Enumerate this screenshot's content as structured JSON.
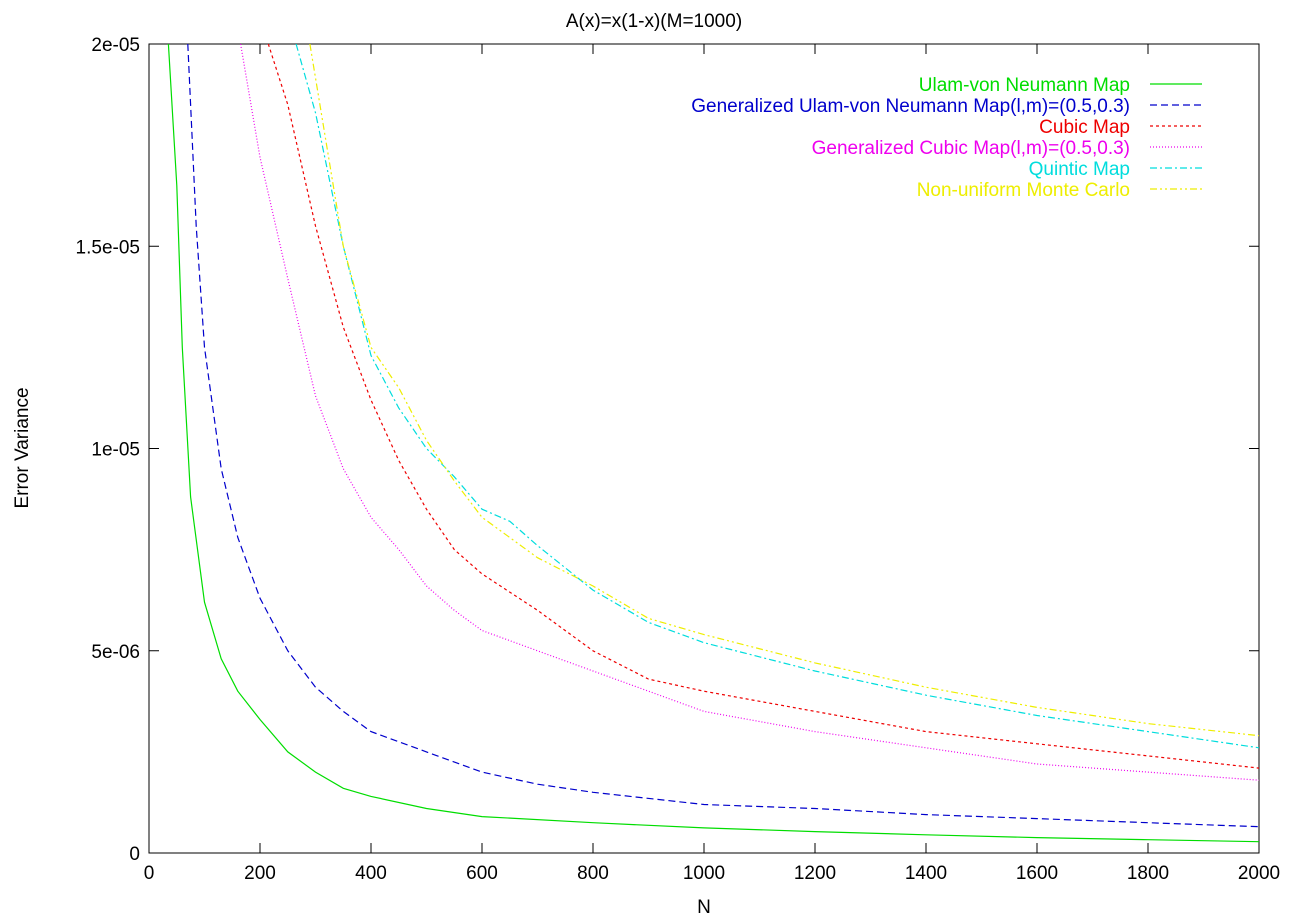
{
  "chart_data": {
    "type": "line",
    "title": "A(x)=x(1-x)(M=1000)",
    "xlabel": "N",
    "ylabel": "Error Variance",
    "xlim": [
      0,
      2000
    ],
    "ylim": [
      0,
      2e-05
    ],
    "x_ticks": [
      0,
      200,
      400,
      600,
      800,
      1000,
      1200,
      1400,
      1600,
      1800,
      2000
    ],
    "x_tick_labels": [
      "0",
      "200",
      "400",
      "600",
      "800",
      "1000",
      "1200",
      "1400",
      "1600",
      "1800",
      "2000"
    ],
    "y_ticks": [
      0,
      5e-06,
      1e-05,
      1.5e-05,
      2e-05
    ],
    "y_tick_labels": [
      "0",
      "5e-06",
      "1e-05",
      "1.5e-05",
      "2e-05"
    ],
    "grid": false,
    "legend_position": "top-right",
    "series": [
      {
        "name": "Ulam-von Neumann Map",
        "color": "#00dd00",
        "dash": "solid",
        "points": [
          [
            35,
            2e-05
          ],
          [
            50,
            1.65e-05
          ],
          [
            60,
            1.25e-05
          ],
          [
            75,
            8.8e-06
          ],
          [
            100,
            6.2e-06
          ],
          [
            130,
            4.8e-06
          ],
          [
            160,
            4e-06
          ],
          [
            200,
            3.3e-06
          ],
          [
            250,
            2.5e-06
          ],
          [
            300,
            2e-06
          ],
          [
            350,
            1.6e-06
          ],
          [
            400,
            1.4e-06
          ],
          [
            500,
            1.1e-06
          ],
          [
            600,
            9e-07
          ],
          [
            800,
            7.5e-07
          ],
          [
            1000,
            6.2e-07
          ],
          [
            1200,
            5.3e-07
          ],
          [
            1400,
            4.5e-07
          ],
          [
            1600,
            3.8e-07
          ],
          [
            1800,
            3.3e-07
          ],
          [
            2000,
            2.8e-07
          ]
        ]
      },
      {
        "name": "Generalized Ulam-von Neumann Map(l,m)=(0.5,0.3)",
        "color": "#0000cc",
        "dash": "long-dash",
        "points": [
          [
            70,
            2e-05
          ],
          [
            85,
            1.55e-05
          ],
          [
            100,
            1.25e-05
          ],
          [
            130,
            9.5e-06
          ],
          [
            160,
            7.8e-06
          ],
          [
            200,
            6.3e-06
          ],
          [
            250,
            5e-06
          ],
          [
            300,
            4.1e-06
          ],
          [
            350,
            3.5e-06
          ],
          [
            400,
            3e-06
          ],
          [
            500,
            2.5e-06
          ],
          [
            600,
            2e-06
          ],
          [
            700,
            1.7e-06
          ],
          [
            800,
            1.5e-06
          ],
          [
            1000,
            1.2e-06
          ],
          [
            1200,
            1.1e-06
          ],
          [
            1400,
            9.5e-07
          ],
          [
            1600,
            8.5e-07
          ],
          [
            1800,
            7.5e-07
          ],
          [
            2000,
            6.5e-07
          ]
        ]
      },
      {
        "name": "Cubic Map",
        "color": "#ee0000",
        "dash": "short-dash",
        "points": [
          [
            215,
            2e-05
          ],
          [
            250,
            1.85e-05
          ],
          [
            300,
            1.55e-05
          ],
          [
            350,
            1.3e-05
          ],
          [
            400,
            1.12e-05
          ],
          [
            450,
            9.7e-06
          ],
          [
            500,
            8.5e-06
          ],
          [
            550,
            7.5e-06
          ],
          [
            600,
            6.9e-06
          ],
          [
            700,
            6e-06
          ],
          [
            800,
            5e-06
          ],
          [
            900,
            4.3e-06
          ],
          [
            1000,
            4e-06
          ],
          [
            1200,
            3.5e-06
          ],
          [
            1400,
            3e-06
          ],
          [
            1600,
            2.7e-06
          ],
          [
            1800,
            2.4e-06
          ],
          [
            2000,
            2.1e-06
          ]
        ]
      },
      {
        "name": "Generalized Cubic Map(l,m)=(0.5,0.3)",
        "color": "#ee00ee",
        "dash": "dotted",
        "points": [
          [
            165,
            2e-05
          ],
          [
            200,
            1.72e-05
          ],
          [
            250,
            1.42e-05
          ],
          [
            300,
            1.13e-05
          ],
          [
            350,
            9.5e-06
          ],
          [
            400,
            8.3e-06
          ],
          [
            450,
            7.5e-06
          ],
          [
            500,
            6.6e-06
          ],
          [
            550,
            6e-06
          ],
          [
            600,
            5.5e-06
          ],
          [
            700,
            5e-06
          ],
          [
            800,
            4.5e-06
          ],
          [
            900,
            4e-06
          ],
          [
            1000,
            3.5e-06
          ],
          [
            1200,
            3e-06
          ],
          [
            1400,
            2.6e-06
          ],
          [
            1600,
            2.2e-06
          ],
          [
            1800,
            2e-06
          ],
          [
            2000,
            1.8e-06
          ]
        ]
      },
      {
        "name": "Quintic Map",
        "color": "#00dddd",
        "dash": "dash-dot",
        "points": [
          [
            265,
            2e-05
          ],
          [
            300,
            1.83e-05
          ],
          [
            350,
            1.5e-05
          ],
          [
            400,
            1.23e-05
          ],
          [
            450,
            1.1e-05
          ],
          [
            500,
            1e-05
          ],
          [
            550,
            9.3e-06
          ],
          [
            600,
            8.5e-06
          ],
          [
            650,
            8.2e-06
          ],
          [
            700,
            7.6e-06
          ],
          [
            800,
            6.5e-06
          ],
          [
            900,
            5.7e-06
          ],
          [
            1000,
            5.2e-06
          ],
          [
            1200,
            4.5e-06
          ],
          [
            1400,
            3.9e-06
          ],
          [
            1600,
            3.4e-06
          ],
          [
            1800,
            3e-06
          ],
          [
            2000,
            2.6e-06
          ]
        ]
      },
      {
        "name": "Non-uniform Monte Carlo",
        "color": "#eeee00",
        "dash": "dash-dot-dot",
        "points": [
          [
            290,
            2e-05
          ],
          [
            320,
            1.75e-05
          ],
          [
            350,
            1.5e-05
          ],
          [
            400,
            1.25e-05
          ],
          [
            450,
            1.15e-05
          ],
          [
            500,
            1.02e-05
          ],
          [
            550,
            9.2e-06
          ],
          [
            600,
            8.3e-06
          ],
          [
            700,
            7.3e-06
          ],
          [
            800,
            6.6e-06
          ],
          [
            900,
            5.8e-06
          ],
          [
            1000,
            5.4e-06
          ],
          [
            1200,
            4.7e-06
          ],
          [
            1400,
            4.1e-06
          ],
          [
            1600,
            3.6e-06
          ],
          [
            1800,
            3.2e-06
          ],
          [
            2000,
            2.9e-06
          ]
        ]
      }
    ]
  }
}
